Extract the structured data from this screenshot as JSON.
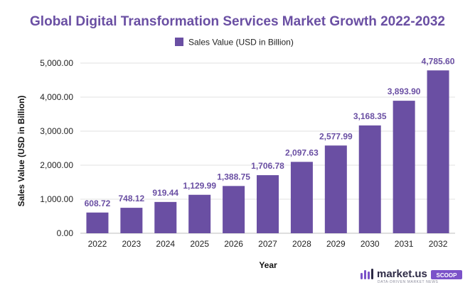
{
  "chart_data": {
    "type": "bar",
    "title": "Global Digital Transformation Services Market Growth 2022-2032",
    "xlabel": "Year",
    "ylabel": "Sales Value (USD in Billion)",
    "ylim": [
      0,
      5000
    ],
    "yticks": [
      "0.00",
      "1,000.00",
      "2,000.00",
      "3,000.00",
      "4,000.00",
      "5,000.00"
    ],
    "ytick_values": [
      0,
      1000,
      2000,
      3000,
      4000,
      5000
    ],
    "grid": true,
    "legend_position": "top-center",
    "categories": [
      "2022",
      "2023",
      "2024",
      "2025",
      "2026",
      "2027",
      "2028",
      "2029",
      "2030",
      "2031",
      "2032"
    ],
    "series": [
      {
        "name": "Sales Value (USD in Billion)",
        "color": "#6a4fa3",
        "values": [
          608.72,
          748.12,
          919.44,
          1129.99,
          1388.75,
          1706.78,
          2097.63,
          2577.99,
          3168.35,
          3893.9,
          4785.6
        ],
        "labels": [
          "608.72",
          "748.12",
          "919.44",
          "1,129.99",
          "1,388.75",
          "1,706.78",
          "2,097.63",
          "2,577.99",
          "3,168.35",
          "3,893.90",
          "4,785.60"
        ]
      }
    ]
  },
  "branding": {
    "logo_text": "market.us",
    "badge": "SCOOP",
    "tagline": "DATA-DRIVEN MARKET NEWS",
    "logo_icon": "bar-logo-icon",
    "badge_color": "#7b52c9"
  }
}
